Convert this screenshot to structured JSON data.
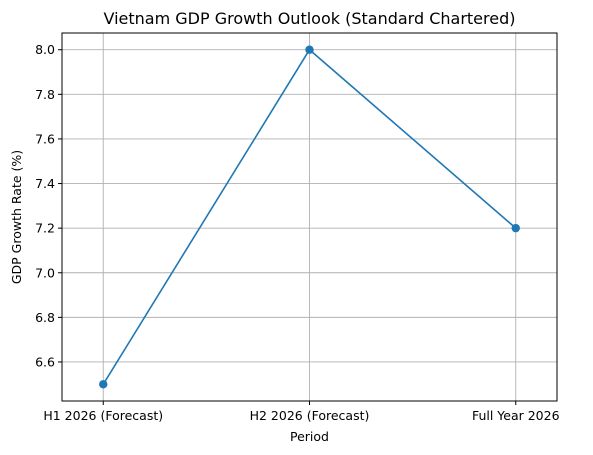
{
  "chart_data": {
    "type": "line",
    "title": "Vietnam GDP Growth Outlook (Standard Chartered)",
    "xlabel": "Period",
    "ylabel": "GDP Growth Rate (%)",
    "categories": [
      "H1 2026 (Forecast)",
      "H2 2026 (Forecast)",
      "Full Year 2026"
    ],
    "series": [
      {
        "values": [
          6.5,
          8.0,
          7.2
        ],
        "color": "#1f77b4",
        "marker": "circle"
      }
    ],
    "yticks": [
      6.6,
      6.8,
      7.0,
      7.2,
      7.4,
      7.6,
      7.8,
      8.0
    ],
    "ylim": [
      6.425,
      8.075
    ],
    "grid": true
  }
}
